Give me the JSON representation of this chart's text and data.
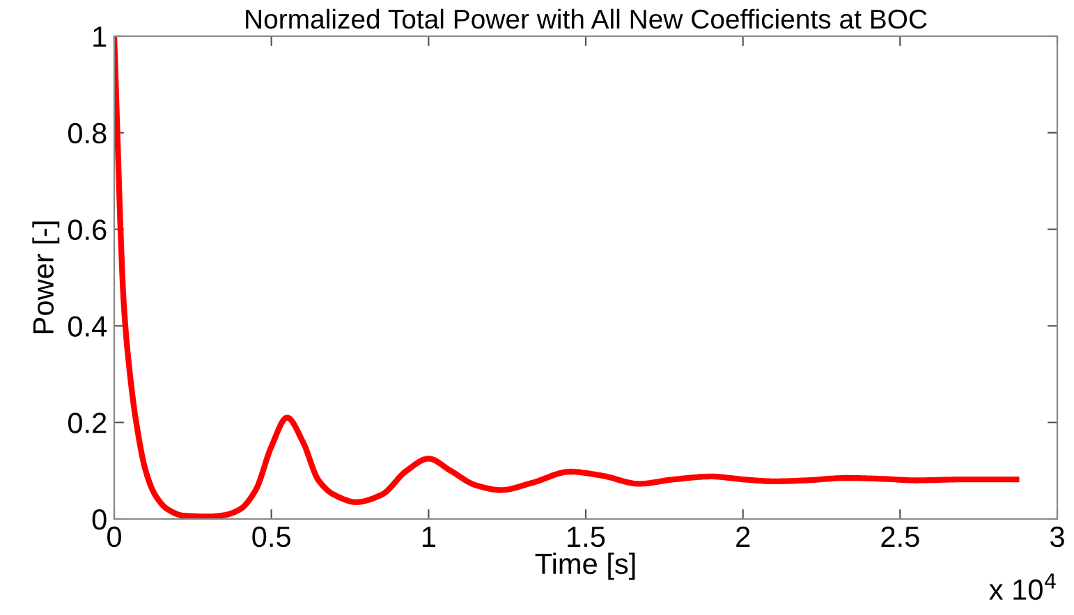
{
  "chart_data": {
    "type": "line",
    "title": "Normalized Total Power with All New Coefficients at BOC",
    "xlabel": "Time [s]",
    "ylabel": "Power [-]",
    "annotations": [
      "x 10$^{4}$"
    ],
    "x": [
      0,
      0.01,
      0.02,
      0.03,
      0.05,
      0.07,
      0.1,
      0.13,
      0.17,
      0.22,
      0.3,
      0.35,
      0.4,
      0.45,
      0.5,
      0.55,
      0.6,
      0.65,
      0.7,
      0.77,
      0.85,
      0.93,
      1.0,
      1.07,
      1.15,
      1.23,
      1.33,
      1.45,
      1.55,
      1.67,
      1.78,
      1.9,
      2.0,
      2.1,
      2.2,
      2.33,
      2.45,
      2.55,
      2.7,
      2.87
    ],
    "series": [
      {
        "color": "#ff0000",
        "values": [
          1.0,
          0.8,
          0.6,
          0.45,
          0.3,
          0.2,
          0.1,
          0.05,
          0.02,
          0.007,
          0.005,
          0.008,
          0.02,
          0.06,
          0.15,
          0.21,
          0.16,
          0.08,
          0.05,
          0.035,
          0.05,
          0.1,
          0.125,
          0.1,
          0.07,
          0.06,
          0.075,
          0.098,
          0.09,
          0.073,
          0.082,
          0.088,
          0.082,
          0.078,
          0.08,
          0.085,
          0.083,
          0.08,
          0.082,
          0.082
        ]
      }
    ],
    "xlim": [
      0,
      3
    ],
    "xticks": [
      0,
      0.5,
      1,
      1.5,
      2,
      2.5,
      3
    ],
    "ylim": [
      0,
      1
    ],
    "yticks": [
      0,
      0.2,
      0.4,
      0.6,
      0.8,
      1
    ],
    "grid": false,
    "legend": false,
    "marker": "none",
    "line_style": "solid"
  }
}
